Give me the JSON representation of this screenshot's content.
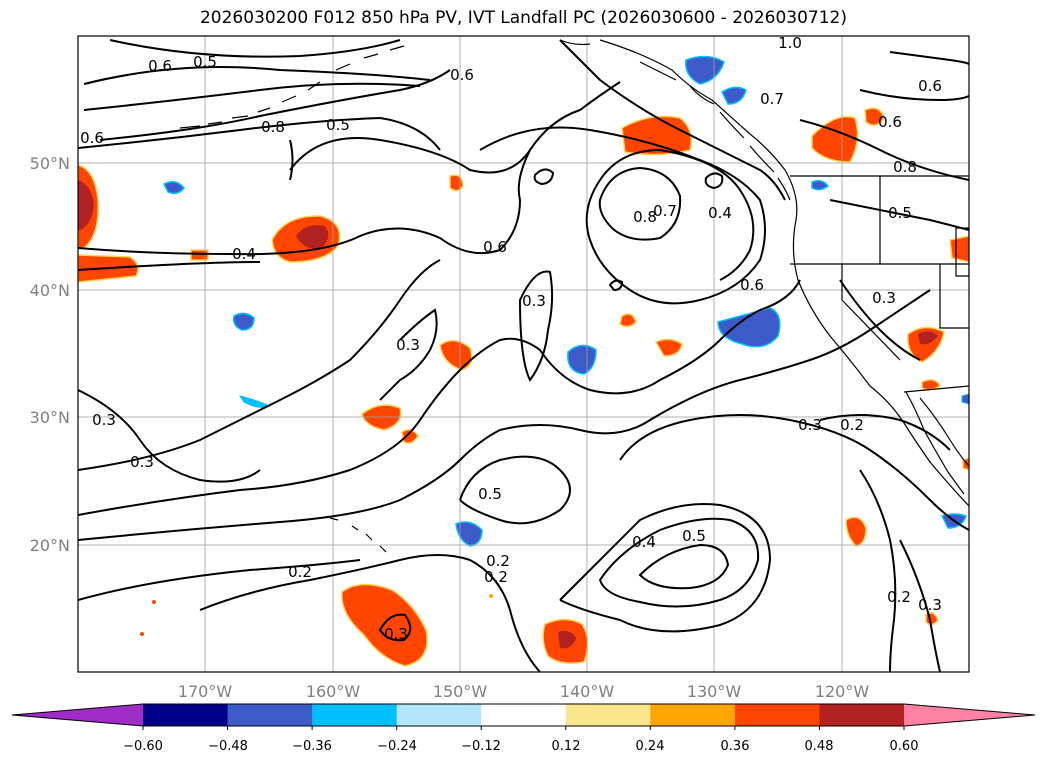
{
  "title": "2026030200 F012 850 hPa PV, IVT Landfall PC (2026030600 - 2026030712)",
  "map": {
    "lon_range": [
      -180,
      -110
    ],
    "lat_range": [
      10,
      60
    ],
    "lat_tick_labels": [
      "20°N",
      "30°N",
      "40°N",
      "50°N"
    ],
    "lon_tick_labels": [
      "170°W",
      "160°W",
      "150°W",
      "140°W",
      "130°W",
      "120°W"
    ],
    "gridlines": true,
    "coastline_color": "#000000",
    "contour_color": "#000000",
    "contour_labels": [
      "0.6",
      "0.5",
      "0.8",
      "0.5",
      "0.6",
      "0.6",
      "1.0",
      "0.6",
      "0.7",
      "0.6",
      "0.8",
      "0.4",
      "0.8",
      "0.7",
      "0.4",
      "0.6",
      "0.5",
      "0.6",
      "0.3",
      "0.3",
      "0.3",
      "0.3",
      "0.5",
      "0.4",
      "0.5",
      "0.2",
      "0.2",
      "0.3",
      "0.2",
      "0.3",
      "0.2",
      "0.3",
      "0.2",
      "0.3"
    ]
  },
  "colorbar": {
    "extend": "both",
    "tick_labels": [
      "−0.60",
      "−0.48",
      "−0.36",
      "−0.24",
      "−0.12",
      "0.12",
      "0.24",
      "0.36",
      "0.48",
      "0.60"
    ],
    "colors": [
      "#a02cc8",
      "#00008b",
      "#3c5ac8",
      "#00bfff",
      "#b4e6fa",
      "#ffffff",
      "#fae68c",
      "#ffa500",
      "#ff4500",
      "#b22222",
      "#ff82a5"
    ]
  }
}
